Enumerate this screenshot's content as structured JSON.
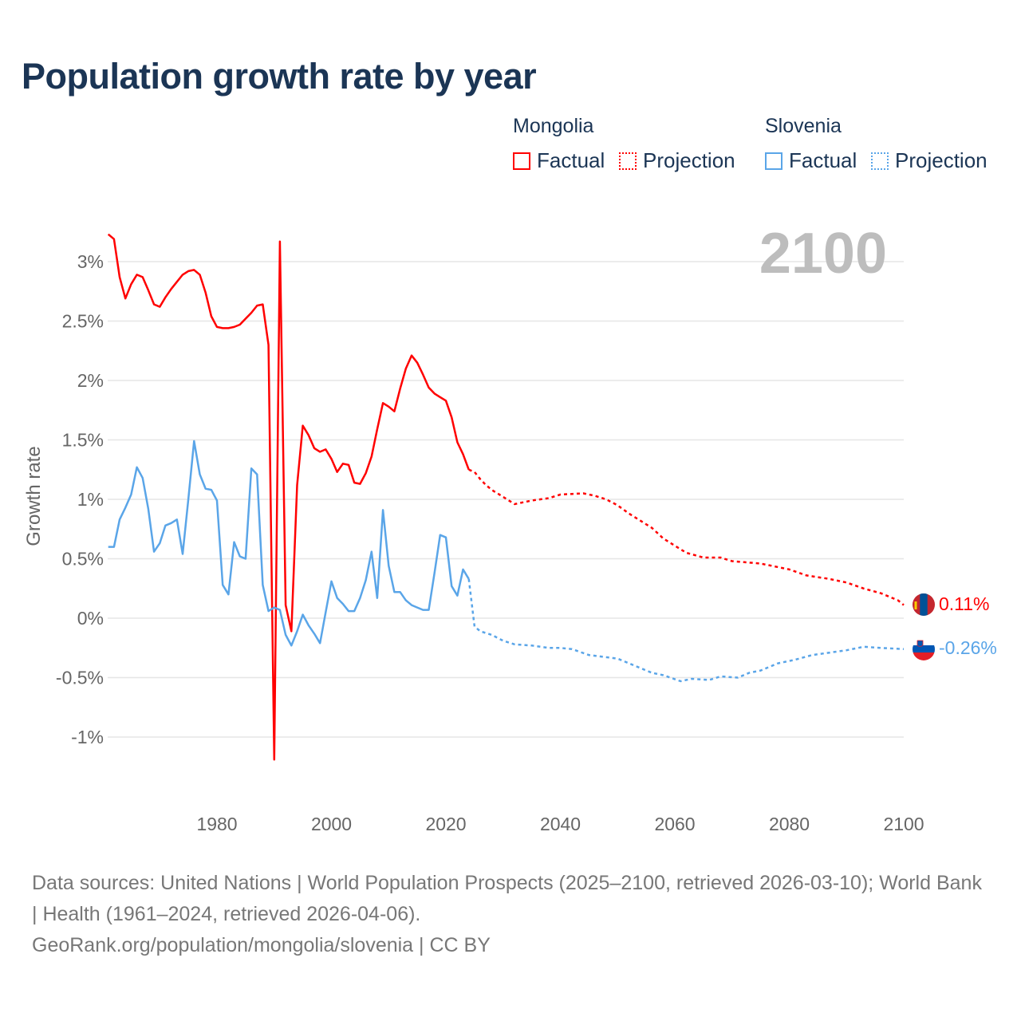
{
  "title": "Population growth rate by year",
  "legend": {
    "groups": [
      {
        "name": "Mongolia",
        "factual": "Factual",
        "projection": "Projection",
        "color": "#ff0000"
      },
      {
        "name": "Slovenia",
        "factual": "Factual",
        "projection": "Projection",
        "color": "#5aa5e8"
      }
    ]
  },
  "year_label": "2100",
  "end_labels": {
    "mongolia": "0.11%",
    "slovenia": "-0.26%"
  },
  "sources": {
    "line1": "Data sources: United Nations | World Population Prospects (2025–2100, retrieved 2026-03-10); World Bank | Health (1961–2024, retrieved 2026-04-06).",
    "line2": "GeoRank.org/population/mongolia/slovenia | CC BY"
  },
  "chart_data": {
    "type": "line",
    "title": "Population growth rate by year",
    "xlabel": "",
    "ylabel": "Growth rate",
    "xlim": [
      1961,
      2100
    ],
    "ylim": [
      -1.4,
      3.3
    ],
    "x_ticks": [
      1980,
      2000,
      2020,
      2040,
      2060,
      2080,
      2100
    ],
    "y_ticks": [
      {
        "v": 3,
        "label": "3%"
      },
      {
        "v": 2.5,
        "label": "2.5%"
      },
      {
        "v": 2,
        "label": "2%"
      },
      {
        "v": 1.5,
        "label": "1.5%"
      },
      {
        "v": 1,
        "label": "1%"
      },
      {
        "v": 0.5,
        "label": "0.5%"
      },
      {
        "v": 0,
        "label": "0%"
      },
      {
        "v": -0.5,
        "label": "-0.5%"
      },
      {
        "v": -1,
        "label": "-1%"
      }
    ],
    "grid": true,
    "legend_position": "top-right",
    "series": [
      {
        "name": "Mongolia Factual",
        "country": "Mongolia",
        "style": "solid",
        "color": "#ff0000",
        "x": [
          1961,
          1962,
          1963,
          1964,
          1965,
          1966,
          1967,
          1968,
          1969,
          1970,
          1971,
          1972,
          1973,
          1974,
          1975,
          1976,
          1977,
          1978,
          1979,
          1980,
          1981,
          1982,
          1983,
          1984,
          1985,
          1986,
          1987,
          1988,
          1989,
          1990,
          1991,
          1992,
          1993,
          1994,
          1995,
          1996,
          1997,
          1998,
          1999,
          2000,
          2001,
          2002,
          2003,
          2004,
          2005,
          2006,
          2007,
          2008,
          2009,
          2010,
          2011,
          2012,
          2013,
          2014,
          2015,
          2016,
          2017,
          2018,
          2019,
          2020,
          2021,
          2022,
          2023,
          2024
        ],
        "y": [
          3.23,
          3.19,
          2.87,
          2.69,
          2.81,
          2.89,
          2.87,
          2.76,
          2.64,
          2.62,
          2.7,
          2.77,
          2.83,
          2.89,
          2.92,
          2.93,
          2.89,
          2.74,
          2.54,
          2.45,
          2.44,
          2.44,
          2.45,
          2.47,
          2.52,
          2.57,
          2.63,
          2.64,
          2.3,
          -1.19,
          3.17,
          0.11,
          -0.11,
          1.12,
          1.62,
          1.54,
          1.43,
          1.4,
          1.42,
          1.34,
          1.23,
          1.3,
          1.29,
          1.14,
          1.13,
          1.22,
          1.36,
          1.59,
          1.81,
          1.78,
          1.74,
          1.93,
          2.1,
          2.21,
          2.15,
          2.05,
          1.94,
          1.89,
          1.86,
          1.83,
          1.69,
          1.48,
          1.38,
          1.25
        ]
      },
      {
        "name": "Mongolia Projection",
        "country": "Mongolia",
        "style": "dotted",
        "color": "#ff0000",
        "x": [
          2024,
          2025,
          2026,
          2027,
          2028,
          2029,
          2030,
          2032,
          2035,
          2038,
          2040,
          2044,
          2046,
          2048,
          2050,
          2052,
          2054,
          2056,
          2058,
          2060,
          2062,
          2065,
          2068,
          2070,
          2075,
          2080,
          2083,
          2087,
          2090,
          2093,
          2096,
          2099,
          2100
        ],
        "y": [
          1.25,
          1.23,
          1.17,
          1.12,
          1.08,
          1.05,
          1.02,
          0.96,
          0.99,
          1.01,
          1.04,
          1.05,
          1.03,
          1.0,
          0.95,
          0.88,
          0.82,
          0.76,
          0.67,
          0.61,
          0.55,
          0.51,
          0.51,
          0.48,
          0.46,
          0.41,
          0.36,
          0.33,
          0.3,
          0.25,
          0.21,
          0.15,
          0.11
        ]
      },
      {
        "name": "Slovenia Factual",
        "country": "Slovenia",
        "style": "solid",
        "color": "#5aa5e8",
        "x": [
          1961,
          1962,
          1963,
          1964,
          1965,
          1966,
          1967,
          1968,
          1969,
          1970,
          1971,
          1972,
          1973,
          1974,
          1975,
          1976,
          1977,
          1978,
          1979,
          1980,
          1981,
          1982,
          1983,
          1984,
          1985,
          1986,
          1987,
          1988,
          1989,
          1990,
          1991,
          1992,
          1993,
          1994,
          1995,
          1996,
          1997,
          1998,
          1999,
          2000,
          2001,
          2002,
          2003,
          2004,
          2005,
          2006,
          2007,
          2008,
          2009,
          2010,
          2011,
          2012,
          2013,
          2014,
          2015,
          2016,
          2017,
          2018,
          2019,
          2020,
          2021,
          2022,
          2023,
          2024
        ],
        "y": [
          0.6,
          0.6,
          0.83,
          0.93,
          1.04,
          1.27,
          1.18,
          0.92,
          0.56,
          0.63,
          0.78,
          0.8,
          0.83,
          0.54,
          1.0,
          1.49,
          1.21,
          1.09,
          1.08,
          0.99,
          0.28,
          0.2,
          0.64,
          0.52,
          0.5,
          1.26,
          1.21,
          0.28,
          0.06,
          0.09,
          0.07,
          -0.14,
          -0.23,
          -0.11,
          0.03,
          -0.06,
          -0.13,
          -0.21,
          0.05,
          0.31,
          0.17,
          0.12,
          0.06,
          0.06,
          0.17,
          0.32,
          0.56,
          0.17,
          0.91,
          0.44,
          0.22,
          0.22,
          0.15,
          0.11,
          0.09,
          0.07,
          0.07,
          0.38,
          0.7,
          0.68,
          0.27,
          0.19,
          0.41,
          0.33
        ]
      },
      {
        "name": "Slovenia Projection",
        "country": "Slovenia",
        "style": "dotted",
        "color": "#5aa5e8",
        "x": [
          2024,
          2025,
          2026,
          2028,
          2030,
          2032,
          2035,
          2038,
          2040,
          2042,
          2045,
          2050,
          2053,
          2056,
          2058,
          2061,
          2063,
          2066,
          2068,
          2071,
          2073,
          2075,
          2078,
          2081,
          2084,
          2087,
          2090,
          2093,
          2096,
          2100
        ],
        "y": [
          0.33,
          -0.07,
          -0.11,
          -0.14,
          -0.19,
          -0.22,
          -0.23,
          -0.25,
          -0.25,
          -0.26,
          -0.31,
          -0.34,
          -0.4,
          -0.46,
          -0.48,
          -0.53,
          -0.51,
          -0.52,
          -0.49,
          -0.5,
          -0.46,
          -0.44,
          -0.38,
          -0.35,
          -0.31,
          -0.29,
          -0.27,
          -0.24,
          -0.25,
          -0.26
        ]
      }
    ]
  }
}
